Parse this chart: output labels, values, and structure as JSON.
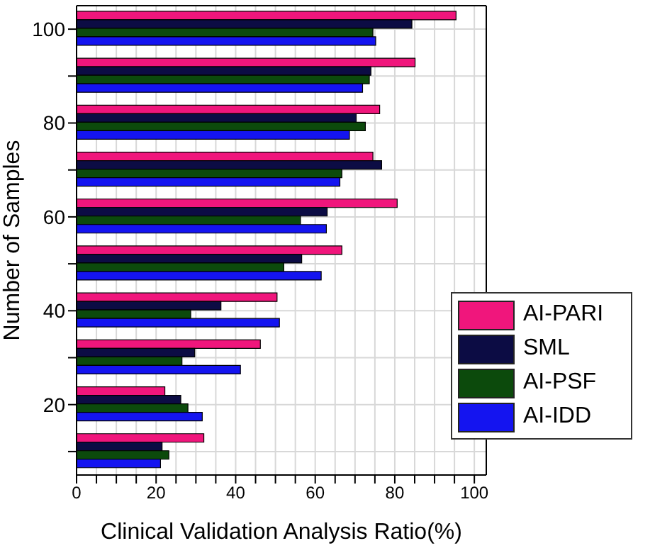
{
  "chart_data": {
    "type": "bar",
    "orientation": "horizontal",
    "xlabel": "Clinical Validation Analysis Ratio(%)",
    "ylabel": "Number of Samples",
    "categories": [
      "100",
      null,
      "80",
      null,
      "60",
      null,
      "40",
      null,
      "20",
      null
    ],
    "series": [
      {
        "name": "AI-PARI",
        "color": "#f0167c",
        "values": [
          95.4,
          85.1,
          76.2,
          74.5,
          80.6,
          66.7,
          50.4,
          46.2,
          22.2,
          32.0
        ]
      },
      {
        "name": "SML",
        "color": "#0c0c44",
        "values": [
          84.3,
          74.0,
          70.3,
          76.7,
          63.0,
          56.6,
          36.3,
          29.7,
          26.2,
          21.5
        ]
      },
      {
        "name": "AI-PSF",
        "color": "#0c4a0c",
        "values": [
          74.5,
          73.6,
          72.6,
          66.7,
          56.3,
          52.1,
          28.7,
          26.5,
          28.0,
          23.2
        ]
      },
      {
        "name": "AI-IDD",
        "color": "#1414f0",
        "values": [
          75.2,
          71.9,
          68.6,
          66.2,
          62.8,
          61.5,
          51.0,
          41.2,
          31.6,
          21.1
        ]
      }
    ],
    "xlim": [
      0,
      103
    ],
    "xticks": [
      0,
      {
        "value": 5,
        "label": null
      },
      {
        "value": 10,
        "label": null
      },
      {
        "value": 15,
        "label": null
      },
      20,
      {
        "value": 25,
        "label": null
      },
      {
        "value": 30,
        "label": null
      },
      {
        "value": 35,
        "label": null
      },
      40,
      {
        "value": 45,
        "label": null
      },
      {
        "value": 50,
        "label": null
      },
      {
        "value": 55,
        "label": null
      },
      60,
      {
        "value": 65,
        "label": null
      },
      {
        "value": 70,
        "label": null
      },
      {
        "value": 75,
        "label": null
      },
      80,
      {
        "value": 85,
        "label": null
      },
      {
        "value": 90,
        "label": null
      },
      {
        "value": 95,
        "label": null
      },
      100
    ],
    "grid": true,
    "legend": "bottom right"
  }
}
